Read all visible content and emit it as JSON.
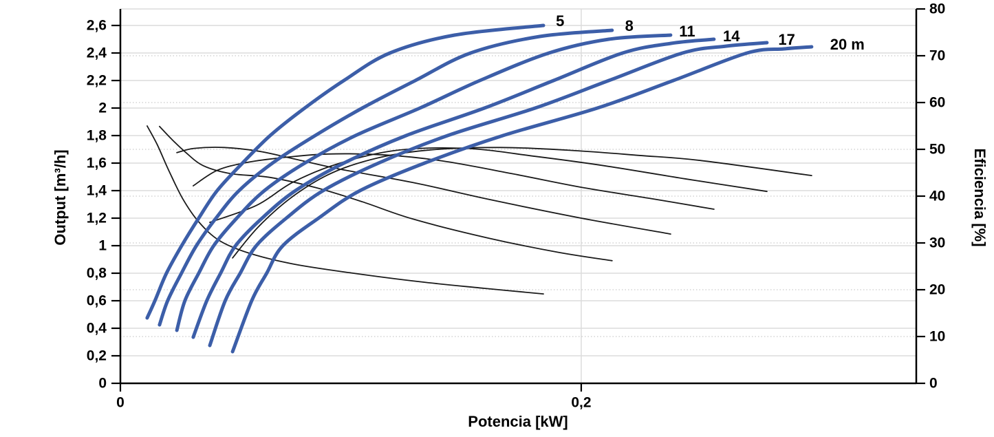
{
  "chart_data": {
    "type": "line",
    "title": "",
    "x_label": "Potencia [kW]",
    "y_left_label": "Output [m³/h]",
    "y_right_label": "Eficiencia [%]",
    "x_range": [
      0,
      0.3454
    ],
    "y_left_range": [
      0,
      2.72
    ],
    "y_right_range": [
      0,
      80
    ],
    "grid": {
      "horizontal_solid": "left-ticks",
      "horizontal_dotted": "right-ticks",
      "vertical": "x-ticks",
      "legend": "none"
    },
    "colors": {
      "pump_curve": "#3c5ea8",
      "efficiency_curve": "#1a1a1a",
      "grid_solid": "#dcdcdc",
      "grid_dotted": "#c9c9c9",
      "axis": "#000000",
      "text": "#000000",
      "background": "#ffffff"
    },
    "x_ticks": [
      {
        "v": 0,
        "label": "0"
      },
      {
        "v": 0.2,
        "label": "0,2"
      }
    ],
    "y_left_ticks": [
      {
        "v": 0,
        "label": "0"
      },
      {
        "v": 0.2,
        "label": "0,2"
      },
      {
        "v": 0.4,
        "label": "0,4"
      },
      {
        "v": 0.6,
        "label": "0,6"
      },
      {
        "v": 0.8,
        "label": "0,8"
      },
      {
        "v": 1.0,
        "label": "1"
      },
      {
        "v": 1.2,
        "label": "1,2"
      },
      {
        "v": 1.4,
        "label": "1,4"
      },
      {
        "v": 1.6,
        "label": "1,6"
      },
      {
        "v": 1.8,
        "label": "1,8"
      },
      {
        "v": 2.0,
        "label": "2"
      },
      {
        "v": 2.2,
        "label": "2,2"
      },
      {
        "v": 2.4,
        "label": "2,4"
      },
      {
        "v": 2.6,
        "label": "2,6"
      }
    ],
    "y_right_ticks": [
      {
        "v": 0,
        "label": "0"
      },
      {
        "v": 10,
        "label": "10"
      },
      {
        "v": 20,
        "label": "20"
      },
      {
        "v": 30,
        "label": "30"
      },
      {
        "v": 40,
        "label": "40"
      },
      {
        "v": 50,
        "label": "50"
      },
      {
        "v": 60,
        "label": "60"
      },
      {
        "v": 70,
        "label": "70"
      },
      {
        "v": 80,
        "label": "80"
      }
    ],
    "series": [
      {
        "name": "eficiencia-5m",
        "axis": "right",
        "role": "efficiency",
        "head_m": 5,
        "width": 1.8,
        "points": [
          [
            0.0116,
            55.0
          ],
          [
            0.016,
            51.0
          ],
          [
            0.021,
            45.5
          ],
          [
            0.027,
            39.5
          ],
          [
            0.034,
            34.5
          ],
          [
            0.043,
            30.5
          ],
          [
            0.056,
            27.8
          ],
          [
            0.075,
            25.5
          ],
          [
            0.1,
            23.6
          ],
          [
            0.13,
            21.7
          ],
          [
            0.158,
            20.3
          ],
          [
            0.1836,
            19.1
          ]
        ]
      },
      {
        "name": "eficiencia-8m",
        "axis": "right",
        "role": "efficiency",
        "head_m": 8,
        "width": 1.8,
        "points": [
          [
            0.017,
            54.9
          ],
          [
            0.022,
            52.3
          ],
          [
            0.028,
            49.5
          ],
          [
            0.036,
            46.5
          ],
          [
            0.048,
            44.8
          ],
          [
            0.065,
            44.0
          ],
          [
            0.085,
            41.8
          ],
          [
            0.105,
            38.8
          ],
          [
            0.127,
            35.1
          ],
          [
            0.16,
            31.0
          ],
          [
            0.19,
            28.0
          ],
          [
            0.2134,
            26.2
          ]
        ]
      },
      {
        "name": "eficiencia-11m",
        "axis": "right",
        "role": "efficiency",
        "head_m": 11,
        "width": 1.8,
        "points": [
          [
            0.0245,
            49.3
          ],
          [
            0.032,
            50.2
          ],
          [
            0.045,
            50.4
          ],
          [
            0.06,
            49.6
          ],
          [
            0.075,
            48.0
          ],
          [
            0.095,
            45.8
          ],
          [
            0.127,
            42.9
          ],
          [
            0.16,
            39.3
          ],
          [
            0.2,
            35.3
          ],
          [
            0.2388,
            31.9
          ]
        ]
      },
      {
        "name": "eficiencia-14m",
        "axis": "right",
        "role": "efficiency",
        "head_m": 14,
        "width": 1.8,
        "points": [
          [
            0.0316,
            42.2
          ],
          [
            0.042,
            45.5
          ],
          [
            0.055,
            47.2
          ],
          [
            0.07,
            48.2
          ],
          [
            0.09,
            49.0
          ],
          [
            0.115,
            48.8
          ],
          [
            0.14,
            47.5
          ],
          [
            0.17,
            44.8
          ],
          [
            0.2,
            41.9
          ],
          [
            0.23,
            39.5
          ],
          [
            0.2576,
            37.2
          ]
        ]
      },
      {
        "name": "eficiencia-17m",
        "axis": "right",
        "role": "efficiency",
        "head_m": 17,
        "width": 1.8,
        "points": [
          [
            0.0388,
            34.4
          ],
          [
            0.059,
            38.0
          ],
          [
            0.075,
            43.0
          ],
          [
            0.095,
            47.0
          ],
          [
            0.12,
            49.8
          ],
          [
            0.15,
            50.2
          ],
          [
            0.18,
            48.5
          ],
          [
            0.21,
            46.5
          ],
          [
            0.245,
            43.7
          ],
          [
            0.2806,
            41.0
          ]
        ]
      },
      {
        "name": "eficiencia-20m",
        "axis": "right",
        "role": "efficiency",
        "head_m": 20,
        "width": 1.8,
        "points": [
          [
            0.0487,
            26.8
          ],
          [
            0.06,
            33.5
          ],
          [
            0.075,
            40.0
          ],
          [
            0.092,
            45.0
          ],
          [
            0.112,
            48.2
          ],
          [
            0.135,
            49.9
          ],
          [
            0.165,
            50.4
          ],
          [
            0.195,
            49.8
          ],
          [
            0.225,
            48.7
          ],
          [
            0.252,
            47.6
          ],
          [
            0.3,
            44.4
          ]
        ]
      },
      {
        "name": "caudal-5m",
        "axis": "left",
        "role": "flow",
        "head_m": 5,
        "width": 5,
        "points": [
          [
            0.0116,
            0.475
          ],
          [
            0.015,
            0.6
          ],
          [
            0.02,
            0.8
          ],
          [
            0.0266,
            1.0
          ],
          [
            0.034,
            1.2
          ],
          [
            0.042,
            1.4
          ],
          [
            0.053,
            1.6
          ],
          [
            0.065,
            1.8
          ],
          [
            0.08,
            2.0
          ],
          [
            0.097,
            2.2
          ],
          [
            0.117,
            2.4
          ],
          [
            0.145,
            2.53
          ],
          [
            0.1836,
            2.6
          ]
        ]
      },
      {
        "name": "caudal-8m",
        "axis": "left",
        "role": "flow",
        "head_m": 8,
        "width": 5,
        "points": [
          [
            0.017,
            0.425
          ],
          [
            0.0205,
            0.6
          ],
          [
            0.0265,
            0.8
          ],
          [
            0.033,
            1.0
          ],
          [
            0.0415,
            1.2
          ],
          [
            0.0515,
            1.4
          ],
          [
            0.066,
            1.6
          ],
          [
            0.0845,
            1.8
          ],
          [
            0.105,
            2.0
          ],
          [
            0.128,
            2.2
          ],
          [
            0.152,
            2.4
          ],
          [
            0.182,
            2.52
          ],
          [
            0.2134,
            2.565
          ]
        ]
      },
      {
        "name": "caudal-11m",
        "axis": "left",
        "role": "flow",
        "head_m": 11,
        "width": 5,
        "points": [
          [
            0.0245,
            0.385
          ],
          [
            0.028,
            0.6
          ],
          [
            0.034,
            0.8
          ],
          [
            0.0405,
            1.0
          ],
          [
            0.0505,
            1.2
          ],
          [
            0.0625,
            1.4
          ],
          [
            0.08,
            1.6
          ],
          [
            0.102,
            1.8
          ],
          [
            0.13,
            2.0
          ],
          [
            0.156,
            2.2
          ],
          [
            0.186,
            2.4
          ],
          [
            0.212,
            2.5
          ],
          [
            0.2388,
            2.53
          ]
        ]
      },
      {
        "name": "caudal-14m",
        "axis": "left",
        "role": "flow",
        "head_m": 14,
        "width": 5,
        "points": [
          [
            0.0316,
            0.335
          ],
          [
            0.0375,
            0.6
          ],
          [
            0.0435,
            0.8
          ],
          [
            0.05,
            1.0
          ],
          [
            0.0615,
            1.2
          ],
          [
            0.076,
            1.4
          ],
          [
            0.097,
            1.6
          ],
          [
            0.124,
            1.8
          ],
          [
            0.158,
            2.0
          ],
          [
            0.188,
            2.2
          ],
          [
            0.218,
            2.4
          ],
          [
            0.239,
            2.47
          ],
          [
            0.2576,
            2.5
          ]
        ]
      },
      {
        "name": "caudal-17m",
        "axis": "left",
        "role": "flow",
        "head_m": 17,
        "width": 5,
        "points": [
          [
            0.0388,
            0.275
          ],
          [
            0.0455,
            0.6
          ],
          [
            0.052,
            0.8
          ],
          [
            0.059,
            1.0
          ],
          [
            0.072,
            1.2
          ],
          [
            0.088,
            1.4
          ],
          [
            0.112,
            1.6
          ],
          [
            0.142,
            1.8
          ],
          [
            0.18,
            2.0
          ],
          [
            0.212,
            2.2
          ],
          [
            0.244,
            2.4
          ],
          [
            0.263,
            2.45
          ],
          [
            0.2806,
            2.475
          ]
        ]
      },
      {
        "name": "caudal-20m",
        "axis": "left",
        "role": "flow",
        "head_m": 20,
        "width": 5,
        "points": [
          [
            0.0487,
            0.23
          ],
          [
            0.057,
            0.6
          ],
          [
            0.0635,
            0.8
          ],
          [
            0.0705,
            1.0
          ],
          [
            0.086,
            1.2
          ],
          [
            0.104,
            1.4
          ],
          [
            0.132,
            1.6
          ],
          [
            0.166,
            1.8
          ],
          [
            0.207,
            2.0
          ],
          [
            0.24,
            2.2
          ],
          [
            0.272,
            2.4
          ],
          [
            0.288,
            2.43
          ],
          [
            0.3,
            2.445
          ]
        ]
      }
    ],
    "curve_labels": [
      {
        "text": "5",
        "x": 0.189,
        "y": 2.625
      },
      {
        "text": "8",
        "x": 0.219,
        "y": 2.59
      },
      {
        "text": "11",
        "x": 0.2425,
        "y": 2.55
      },
      {
        "text": "14",
        "x": 0.2615,
        "y": 2.515
      },
      {
        "text": "17",
        "x": 0.2855,
        "y": 2.49
      },
      {
        "text": "20 m",
        "x": 0.308,
        "y": 2.455
      }
    ]
  }
}
